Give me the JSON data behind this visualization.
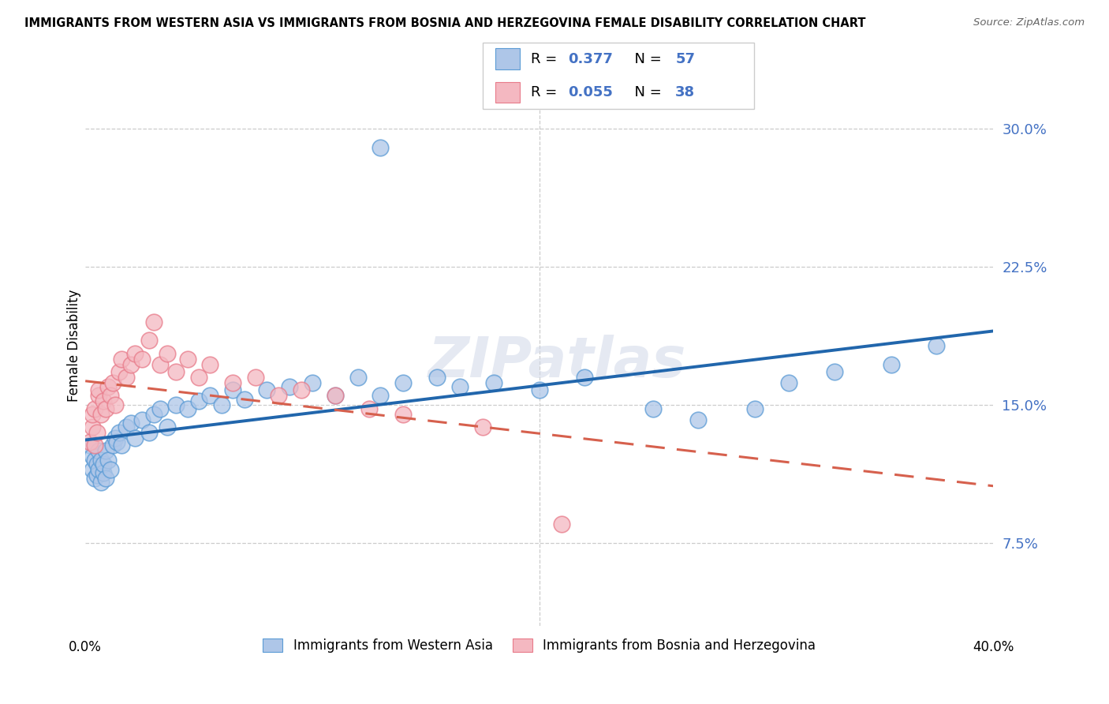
{
  "title": "IMMIGRANTS FROM WESTERN ASIA VS IMMIGRANTS FROM BOSNIA AND HERZEGOVINA FEMALE DISABILITY CORRELATION CHART",
  "source": "Source: ZipAtlas.com",
  "ylabel": "Female Disability",
  "ytick_vals": [
    0.075,
    0.15,
    0.225,
    0.3
  ],
  "ytick_labels": [
    "7.5%",
    "15.0%",
    "22.5%",
    "30.0%"
  ],
  "xlim": [
    0.0,
    0.4
  ],
  "ylim": [
    0.03,
    0.335
  ],
  "legend1_label": "Immigrants from Western Asia",
  "legend2_label": "Immigrants from Bosnia and Herzegovina",
  "R1": "0.377",
  "N1": "57",
  "R2": "0.055",
  "N2": "38",
  "blue_color": "#aec6e8",
  "pink_color": "#f4b8c1",
  "blue_edge_color": "#5b9bd5",
  "pink_edge_color": "#e87b8a",
  "blue_line_color": "#2166ac",
  "pink_line_color": "#d6604d",
  "watermark": "ZIPatlas",
  "blue_x": [
    0.002,
    0.003,
    0.003,
    0.004,
    0.004,
    0.005,
    0.005,
    0.006,
    0.006,
    0.007,
    0.007,
    0.008,
    0.008,
    0.009,
    0.009,
    0.01,
    0.011,
    0.012,
    0.013,
    0.014,
    0.015,
    0.016,
    0.018,
    0.02,
    0.022,
    0.025,
    0.028,
    0.03,
    0.033,
    0.036,
    0.04,
    0.045,
    0.05,
    0.055,
    0.06,
    0.065,
    0.07,
    0.08,
    0.09,
    0.1,
    0.11,
    0.12,
    0.13,
    0.14,
    0.155,
    0.165,
    0.18,
    0.2,
    0.22,
    0.25,
    0.27,
    0.295,
    0.31,
    0.33,
    0.355,
    0.375,
    0.13
  ],
  "blue_y": [
    0.128,
    0.122,
    0.115,
    0.12,
    0.11,
    0.118,
    0.112,
    0.125,
    0.115,
    0.12,
    0.108,
    0.113,
    0.118,
    0.11,
    0.125,
    0.12,
    0.115,
    0.128,
    0.132,
    0.13,
    0.135,
    0.128,
    0.138,
    0.14,
    0.132,
    0.142,
    0.135,
    0.145,
    0.148,
    0.138,
    0.15,
    0.148,
    0.152,
    0.155,
    0.15,
    0.158,
    0.153,
    0.158,
    0.16,
    0.162,
    0.155,
    0.165,
    0.155,
    0.162,
    0.165,
    0.16,
    0.162,
    0.158,
    0.165,
    0.148,
    0.142,
    0.148,
    0.162,
    0.168,
    0.172,
    0.182,
    0.29
  ],
  "pink_x": [
    0.002,
    0.003,
    0.003,
    0.004,
    0.004,
    0.005,
    0.006,
    0.006,
    0.007,
    0.008,
    0.009,
    0.01,
    0.011,
    0.012,
    0.013,
    0.015,
    0.016,
    0.018,
    0.02,
    0.022,
    0.025,
    0.028,
    0.03,
    0.033,
    0.036,
    0.04,
    0.045,
    0.05,
    0.055,
    0.065,
    0.075,
    0.085,
    0.095,
    0.11,
    0.125,
    0.14,
    0.175,
    0.21
  ],
  "pink_y": [
    0.13,
    0.138,
    0.145,
    0.128,
    0.148,
    0.135,
    0.155,
    0.158,
    0.145,
    0.152,
    0.148,
    0.16,
    0.155,
    0.162,
    0.15,
    0.168,
    0.175,
    0.165,
    0.172,
    0.178,
    0.175,
    0.185,
    0.195,
    0.172,
    0.178,
    0.168,
    0.175,
    0.165,
    0.172,
    0.162,
    0.165,
    0.155,
    0.158,
    0.155,
    0.148,
    0.145,
    0.138,
    0.085
  ]
}
